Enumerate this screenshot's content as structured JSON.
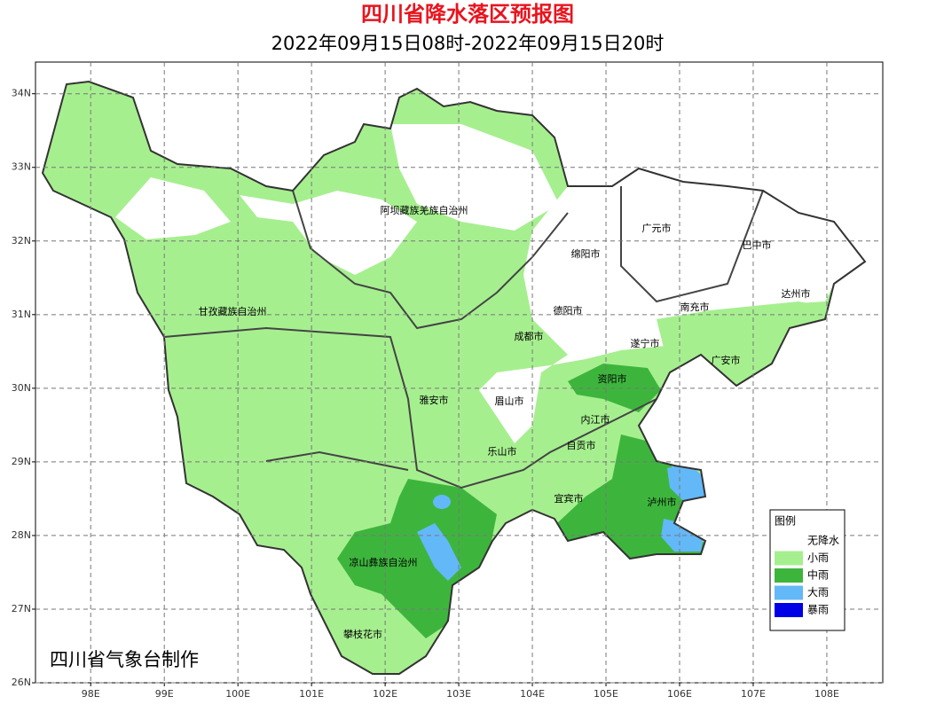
{
  "title": "四川省降水落区预报图",
  "subtitle": "2022年09月15日08时-2022年09月15日20时",
  "map": {
    "xlim": [
      97.25,
      108.76
    ],
    "ylim": [
      26,
      34.43
    ],
    "grid": true,
    "xticks": [
      {
        "value": 98,
        "label": "98E"
      },
      {
        "value": 99,
        "label": "99E"
      },
      {
        "value": 100,
        "label": "100E"
      },
      {
        "value": 101,
        "label": "101E"
      },
      {
        "value": 102,
        "label": "102E"
      },
      {
        "value": 103,
        "label": "103E"
      },
      {
        "value": 104,
        "label": "104E"
      },
      {
        "value": 105,
        "label": "105E"
      },
      {
        "value": 106,
        "label": "106E"
      },
      {
        "value": 107,
        "label": "107E"
      },
      {
        "value": 108,
        "label": "108E"
      }
    ],
    "yticks": [
      {
        "value": 26,
        "label": "26N"
      },
      {
        "value": 27,
        "label": "27N"
      },
      {
        "value": 28,
        "label": "28N"
      },
      {
        "value": 29,
        "label": "29N"
      },
      {
        "value": 30,
        "label": "30N"
      },
      {
        "value": 31,
        "label": "31N"
      },
      {
        "value": 32,
        "label": "32N"
      },
      {
        "value": 33,
        "label": "33N"
      },
      {
        "value": 34,
        "label": "34N"
      }
    ],
    "places": [
      "阿坝藏族羌族自治州",
      "广元市",
      "巴中市",
      "绵阳市",
      "甘孜藏族自治州",
      "德阳市",
      "南充市",
      "达州市",
      "成都市",
      "遂宁市",
      "广安市",
      "资阳市",
      "雅安市",
      "眉山市",
      "内江市",
      "自贡市",
      "乐山市",
      "宜宾市",
      "泸州市",
      "凉山彝族自治州",
      "攀枝花市"
    ]
  },
  "legend": {
    "title": "图例",
    "items": [
      {
        "label": "无降水",
        "color": "#ffffff"
      },
      {
        "label": "小雨",
        "color": "#a6ef8f"
      },
      {
        "label": "中雨",
        "color": "#3db53d"
      },
      {
        "label": "大雨",
        "color": "#63b8f8"
      },
      {
        "label": "暴雨",
        "color": "#0000e6"
      }
    ]
  },
  "credit": "四川省气象台制作"
}
